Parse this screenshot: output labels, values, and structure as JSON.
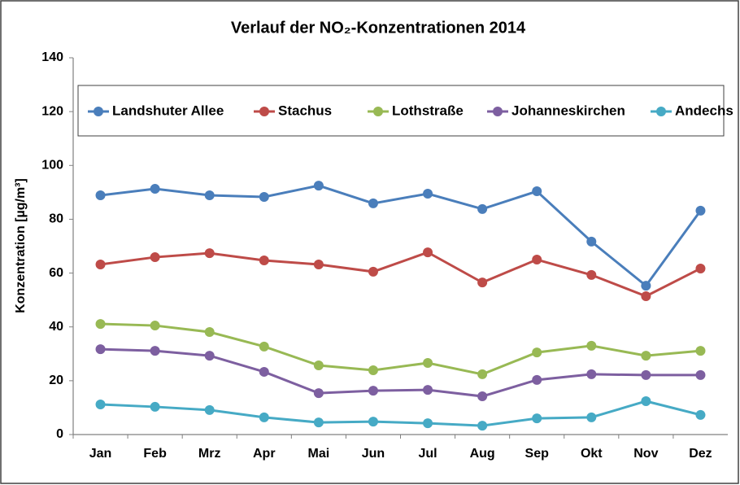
{
  "chart_data": {
    "type": "line",
    "title": "Verlauf der NO₂-Konzentrationen 2014",
    "y_label": "Konzentration [µg/m³]",
    "categories": [
      "Jan",
      "Feb",
      "Mrz",
      "Apr",
      "Mai",
      "Jun",
      "Jul",
      "Aug",
      "Sep",
      "Okt",
      "Nov",
      "Dez"
    ],
    "series": [
      {
        "name": "Landshuter Allee",
        "color": "#4a7ebb",
        "values": [
          88.9,
          91.3,
          88.9,
          88.3,
          92.5,
          85.9,
          89.5,
          83.8,
          90.4,
          71.7,
          55.3,
          83.2
        ]
      },
      {
        "name": "Stachus",
        "color": "#be4b48",
        "values": [
          63.2,
          65.9,
          67.4,
          64.7,
          63.2,
          60.5,
          67.7,
          56.5,
          65.0,
          59.3,
          51.4,
          61.7
        ]
      },
      {
        "name": "Lothstraße",
        "color": "#98b954",
        "values": [
          41.1,
          40.5,
          38.1,
          32.7,
          25.7,
          23.9,
          26.6,
          22.4,
          30.5,
          33.0,
          29.3,
          31.1
        ]
      },
      {
        "name": "Johanneskirchen",
        "color": "#7d5fa0",
        "values": [
          31.7,
          31.1,
          29.3,
          23.3,
          15.4,
          16.3,
          16.6,
          14.2,
          20.3,
          22.4,
          22.1,
          22.1
        ]
      },
      {
        "name": "Andechs",
        "color": "#46aac5",
        "values": [
          11.2,
          10.3,
          9.1,
          6.4,
          4.5,
          4.8,
          4.2,
          3.3,
          6.0,
          6.4,
          12.4,
          7.3
        ]
      }
    ],
    "ylim": [
      0,
      140
    ],
    "yticks": [
      0,
      20,
      40,
      60,
      80,
      100,
      120,
      140
    ],
    "grid": false,
    "legend": "top"
  }
}
